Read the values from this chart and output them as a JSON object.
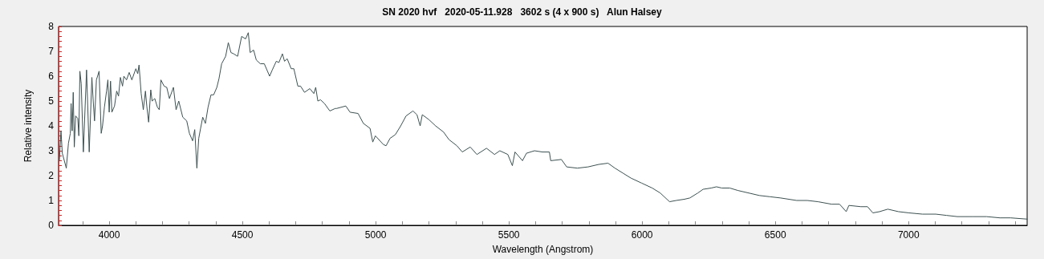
{
  "chart_data": {
    "type": "line",
    "title": "SN 2020 hvf   2020-05-11.928   3602 s (4 x 900 s)   Alun Halsey",
    "xlabel": "Wavelength (Angstrom)",
    "ylabel": "Relative intensity",
    "xlim": [
      3810,
      7445
    ],
    "ylim": [
      0,
      8
    ],
    "xticks": [
      {
        "value": 3900,
        "label": null
      },
      4000,
      {
        "value": 4100,
        "label": null
      },
      {
        "value": 4200,
        "label": null
      },
      {
        "value": 4300,
        "label": null
      },
      {
        "value": 4400,
        "label": null
      },
      4500,
      {
        "value": 4600,
        "label": null
      },
      {
        "value": 4700,
        "label": null
      },
      {
        "value": 4800,
        "label": null
      },
      {
        "value": 4900,
        "label": null
      },
      5000,
      {
        "value": 5100,
        "label": null
      },
      {
        "value": 5200,
        "label": null
      },
      {
        "value": 5300,
        "label": null
      },
      {
        "value": 5400,
        "label": null
      },
      5500,
      {
        "value": 5600,
        "label": null
      },
      {
        "value": 5700,
        "label": null
      },
      {
        "value": 5800,
        "label": null
      },
      {
        "value": 5900,
        "label": null
      },
      6000,
      {
        "value": 6100,
        "label": null
      },
      {
        "value": 6200,
        "label": null
      },
      {
        "value": 6300,
        "label": null
      },
      {
        "value": 6400,
        "label": null
      },
      6500,
      {
        "value": 6600,
        "label": null
      },
      {
        "value": 6700,
        "label": null
      },
      {
        "value": 6800,
        "label": null
      },
      {
        "value": 6900,
        "label": null
      },
      7000,
      {
        "value": 7100,
        "label": null
      },
      {
        "value": 7200,
        "label": null
      },
      {
        "value": 7300,
        "label": null
      },
      {
        "value": 7400,
        "label": null
      }
    ],
    "yticks": [
      0,
      {
        "value": 0.2,
        "label": null
      },
      {
        "value": 0.4,
        "label": null
      },
      {
        "value": 0.6,
        "label": null
      },
      {
        "value": 0.8,
        "label": null
      },
      1,
      {
        "value": 1.2,
        "label": null
      },
      {
        "value": 1.4,
        "label": null
      },
      {
        "value": 1.6,
        "label": null
      },
      {
        "value": 1.8,
        "label": null
      },
      2,
      {
        "value": 2.2,
        "label": null
      },
      {
        "value": 2.4,
        "label": null
      },
      {
        "value": 2.6,
        "label": null
      },
      {
        "value": 2.8,
        "label": null
      },
      3,
      {
        "value": 3.2,
        "label": null
      },
      {
        "value": 3.4,
        "label": null
      },
      {
        "value": 3.6,
        "label": null
      },
      {
        "value": 3.8,
        "label": null
      },
      4,
      {
        "value": 4.2,
        "label": null
      },
      {
        "value": 4.4,
        "label": null
      },
      {
        "value": 4.6,
        "label": null
      },
      {
        "value": 4.8,
        "label": null
      },
      5,
      {
        "value": 5.2,
        "label": null
      },
      {
        "value": 5.4,
        "label": null
      },
      {
        "value": 5.6,
        "label": null
      },
      {
        "value": 5.8,
        "label": null
      },
      6,
      {
        "value": 6.2,
        "label": null
      },
      {
        "value": 6.4,
        "label": null
      },
      {
        "value": 6.6,
        "label": null
      },
      {
        "value": 6.8,
        "label": null
      },
      7,
      {
        "value": 7.2,
        "label": null
      },
      {
        "value": 7.4,
        "label": null
      },
      {
        "value": 7.6,
        "label": null
      },
      {
        "value": 7.8,
        "label": null
      },
      8
    ],
    "grid": false,
    "series": [
      {
        "color": "#3d5050",
        "x": [
          3813,
          3819,
          3824,
          3839,
          3847,
          3854,
          3857,
          3861,
          3865,
          3869,
          3874,
          3882,
          3886,
          3890,
          3895,
          3903,
          3915,
          3925,
          3935,
          3940,
          3945,
          3952,
          3962,
          3970,
          3975,
          3982,
          3990,
          3995,
          4000,
          4005,
          4010,
          4020,
          4028,
          4035,
          4042,
          4050,
          4055,
          4065,
          4075,
          4085,
          4100,
          4107,
          4112,
          4120,
          4128,
          4136,
          4141,
          4148,
          4156,
          4161,
          4171,
          4181,
          4188,
          4194,
          4206,
          4216,
          4226,
          4241,
          4251,
          4261,
          4276,
          4291,
          4301,
          4313,
          4321,
          4329,
          4336,
          4343,
          4351,
          4361,
          4371,
          4382,
          4392,
          4404,
          4412,
          4422,
          4437,
          4447,
          4457,
          4467,
          4482,
          4497,
          4512,
          4522,
          4529,
          4542,
          4552,
          4567,
          4582,
          4602,
          4612,
          4627,
          4637,
          4650,
          4658,
          4668,
          4683,
          4693,
          4708,
          4718,
          4733,
          4753,
          4768,
          4775,
          4783,
          4793,
          4808,
          4828,
          4848,
          4853,
          4888,
          4904,
          4934,
          4954,
          4979,
          4989,
          4999,
          5029,
          5039,
          5054,
          5074,
          5094,
          5114,
          5140,
          5155,
          5167,
          5175,
          5200,
          5225,
          5255,
          5275,
          5305,
          5325,
          5355,
          5380,
          5416,
          5446,
          5466,
          5496,
          5513,
          5523,
          5551,
          5566,
          5596,
          5626,
          5652,
          5657,
          5697,
          5717,
          5757,
          5797,
          5837,
          5872,
          5898,
          5928,
          5958,
          5998,
          6038,
          6068,
          6103,
          6128,
          6159,
          6179,
          6209,
          6229,
          6259,
          6279,
          6299,
          6329,
          6360,
          6400,
          6440,
          6480,
          6520,
          6580,
          6620,
          6660,
          6711,
          6741,
          6766,
          6776,
          6821,
          6846,
          6866,
          6891,
          6922,
          6962,
          7002,
          7052,
          7102,
          7142,
          7183,
          7243,
          7293,
          7343,
          7383,
          7445
        ],
        "values": [
          2.6,
          3.8,
          2.9,
          2.3,
          3.3,
          3.7,
          4.9,
          3.8,
          5.35,
          3.15,
          4.4,
          4.3,
          3.6,
          6.2,
          5.7,
          2.95,
          6.25,
          2.95,
          5.95,
          5.0,
          4.2,
          5.85,
          6.2,
          3.7,
          4.0,
          4.75,
          5.4,
          5.85,
          4.55,
          5.8,
          4.55,
          4.8,
          5.4,
          5.2,
          5.95,
          5.6,
          6.0,
          5.85,
          6.15,
          5.85,
          6.3,
          6.1,
          6.45,
          5.3,
          4.65,
          5.4,
          4.8,
          4.15,
          5.45,
          5.0,
          5.1,
          4.75,
          4.65,
          5.85,
          5.6,
          5.55,
          5.1,
          5.55,
          4.65,
          5.0,
          4.35,
          4.2,
          3.7,
          3.4,
          3.85,
          2.3,
          3.5,
          3.9,
          4.35,
          4.1,
          4.75,
          5.25,
          5.25,
          5.55,
          5.9,
          6.5,
          6.8,
          7.35,
          6.95,
          6.9,
          6.8,
          7.6,
          7.5,
          7.75,
          6.95,
          7.05,
          6.65,
          6.5,
          6.5,
          6.0,
          6.25,
          6.6,
          6.55,
          6.9,
          6.6,
          6.7,
          6.3,
          6.3,
          5.6,
          5.6,
          5.35,
          5.5,
          5.3,
          5.55,
          5.0,
          5.05,
          4.9,
          4.6,
          4.7,
          4.7,
          4.8,
          4.55,
          4.5,
          4.1,
          3.9,
          3.35,
          3.6,
          3.25,
          3.2,
          3.5,
          3.65,
          4.0,
          4.4,
          4.6,
          4.45,
          4.0,
          4.45,
          4.25,
          4.0,
          3.75,
          3.45,
          3.2,
          2.95,
          3.15,
          2.85,
          3.1,
          2.85,
          3.0,
          2.85,
          2.4,
          2.95,
          2.6,
          2.9,
          3.0,
          2.95,
          2.95,
          2.6,
          2.65,
          2.35,
          2.3,
          2.35,
          2.45,
          2.5,
          2.3,
          2.1,
          1.9,
          1.7,
          1.5,
          1.3,
          0.95,
          1.0,
          1.05,
          1.1,
          1.3,
          1.45,
          1.5,
          1.55,
          1.5,
          1.5,
          1.4,
          1.3,
          1.2,
          1.15,
          1.1,
          1.0,
          1.0,
          0.95,
          0.85,
          0.85,
          0.55,
          0.8,
          0.75,
          0.75,
          0.5,
          0.55,
          0.65,
          0.55,
          0.5,
          0.45,
          0.45,
          0.4,
          0.35,
          0.35,
          0.35,
          0.3,
          0.3,
          0.25
        ]
      }
    ]
  }
}
